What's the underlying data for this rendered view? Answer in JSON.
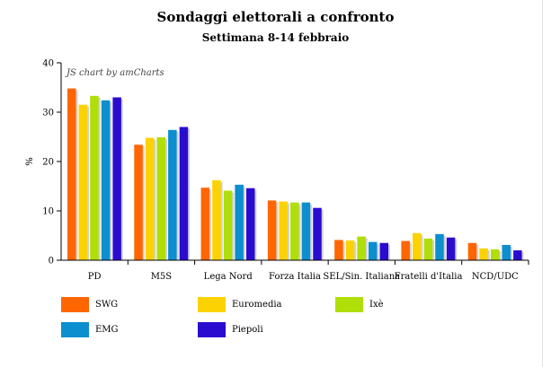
{
  "chart_data": {
    "type": "bar",
    "title": "Sondaggi elettorali a confronto",
    "subtitle": "Settimana 8-14 febbraio",
    "ylabel": "%",
    "xlabel": "",
    "ylim": [
      0,
      40
    ],
    "yticks": [
      "0",
      "10",
      "20",
      "30",
      "40"
    ],
    "grid": false,
    "legend_position": "bottom",
    "watermark": "JS chart by amCharts",
    "categories": [
      "PD",
      "M5S",
      "Lega Nord",
      "Forza Italia",
      "SEL/Sin. Italiana",
      "Fratelli d'Italia",
      "NCD/UDC"
    ],
    "series": [
      {
        "name": "SWG",
        "color": "#ff6600",
        "values": [
          34.8,
          23.4,
          14.7,
          12.1,
          4.1,
          3.9,
          3.5
        ]
      },
      {
        "name": "Euromedia",
        "color": "#fcd202",
        "values": [
          31.5,
          24.8,
          16.2,
          11.9,
          4.0,
          5.5,
          2.4
        ]
      },
      {
        "name": "Ixè",
        "color": "#b0de09",
        "values": [
          33.3,
          24.9,
          14.1,
          11.7,
          4.8,
          4.4,
          2.2
        ]
      },
      {
        "name": "EMG",
        "color": "#0d8ecf",
        "values": [
          32.4,
          26.4,
          15.3,
          11.7,
          3.7,
          5.3,
          3.1
        ]
      },
      {
        "name": "Piepoli",
        "color": "#2a0cd0",
        "values": [
          33.0,
          27.0,
          14.6,
          10.6,
          3.5,
          4.6,
          2.0
        ]
      }
    ]
  }
}
